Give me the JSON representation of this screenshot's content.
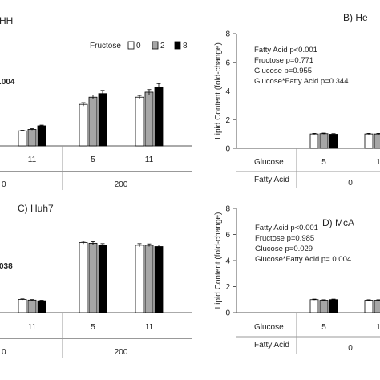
{
  "figure": {
    "legend": {
      "title": "Fructose",
      "entries": [
        {
          "label": "0",
          "color": "#ffffff"
        },
        {
          "label": "2",
          "color": "#a6a6a6"
        },
        {
          "label": "8",
          "color": "#000000"
        }
      ]
    },
    "table_row_labels": {
      "glucose": "Glucose",
      "fatty_acid": "Fatty Acid"
    }
  },
  "chart_data": [
    {
      "id": "panel-a",
      "type": "bar",
      "title": "HH",
      "stat_fragment": ".004",
      "ylabel": "",
      "ylim": [
        0,
        8
      ],
      "categories": [
        "11",
        "5",
        "11"
      ],
      "glucose_labels": [
        "11",
        "5",
        "11"
      ],
      "fatty_acid_groups": [
        {
          "label": "0",
          "categories": [
            0
          ]
        },
        {
          "label": "200",
          "categories": [
            1,
            2
          ]
        }
      ],
      "series": [
        {
          "name": "0",
          "values": [
            1.05,
            2.9,
            3.4
          ],
          "errors": [
            0.04,
            0.12,
            0.12
          ]
        },
        {
          "name": "2",
          "values": [
            1.15,
            3.4,
            3.75
          ],
          "errors": [
            0.05,
            0.15,
            0.18
          ]
        },
        {
          "name": "8",
          "values": [
            1.4,
            3.65,
            4.1
          ],
          "errors": [
            0.05,
            0.22,
            0.25
          ]
        }
      ]
    },
    {
      "id": "panel-b",
      "type": "bar",
      "title": "B) He",
      "ylabel": "Lipid Content (fold-change)",
      "ylim": [
        0,
        8
      ],
      "yticks": [
        "0",
        "2",
        "4",
        "6",
        "8"
      ],
      "stats": [
        "Fatty Acid p<0.001",
        "Fructose  p=0.771",
        "Glucose   p=0.955",
        "Glucose*Fatty Acid  p=0.344"
      ],
      "categories": [
        "5",
        "1"
      ],
      "glucose_labels": [
        "5",
        "1"
      ],
      "fatty_acid_groups": [
        {
          "label": "0",
          "categories": [
            0,
            1
          ]
        }
      ],
      "series": [
        {
          "name": "0",
          "values": [
            1.0,
            1.0
          ],
          "errors": [
            0.04,
            0.04
          ]
        },
        {
          "name": "2",
          "values": [
            1.02,
            1.0
          ],
          "errors": [
            0.04,
            0.04
          ]
        },
        {
          "name": "8",
          "values": [
            0.98,
            1.0
          ],
          "errors": [
            0.04,
            0.04
          ]
        }
      ]
    },
    {
      "id": "panel-c",
      "type": "bar",
      "title": "C) Huh7",
      "stat_fragment": "038",
      "ylabel": "",
      "ylim": [
        0,
        8
      ],
      "categories": [
        "11",
        "5",
        "11"
      ],
      "glucose_labels": [
        "11",
        "5",
        "11"
      ],
      "fatty_acid_groups": [
        {
          "label": "0",
          "categories": [
            0
          ]
        },
        {
          "label": "200",
          "categories": [
            1,
            2
          ]
        }
      ],
      "series": [
        {
          "name": "0",
          "values": [
            1.0,
            5.3,
            5.1
          ],
          "errors": [
            0.04,
            0.1,
            0.12
          ]
        },
        {
          "name": "2",
          "values": [
            0.95,
            5.25,
            5.1
          ],
          "errors": [
            0.04,
            0.12,
            0.1
          ]
        },
        {
          "name": "8",
          "values": [
            0.9,
            5.1,
            5.0
          ],
          "errors": [
            0.04,
            0.12,
            0.12
          ]
        }
      ]
    },
    {
      "id": "panel-d",
      "type": "bar",
      "title": "D) McA",
      "ylabel": "Lipid Content (fold-change)",
      "ylim": [
        0,
        8
      ],
      "yticks": [
        "0",
        "2",
        "4",
        "6",
        "8"
      ],
      "stats": [
        "Fatty Acid p<0.001",
        "Fructose   p=0.985",
        "Glucose    p=0.029",
        "Glucose*Fatty Acid  p= 0.004"
      ],
      "categories": [
        "5",
        "1"
      ],
      "glucose_labels": [
        "5",
        "1"
      ],
      "fatty_acid_groups": [
        {
          "label": "0",
          "categories": [
            0,
            1
          ]
        }
      ],
      "series": [
        {
          "name": "0",
          "values": [
            1.0,
            0.95
          ],
          "errors": [
            0.04,
            0.04
          ]
        },
        {
          "name": "2",
          "values": [
            0.95,
            0.95
          ],
          "errors": [
            0.04,
            0.04
          ]
        },
        {
          "name": "8",
          "values": [
            1.0,
            0.95
          ],
          "errors": [
            0.04,
            0.04
          ]
        }
      ]
    }
  ]
}
